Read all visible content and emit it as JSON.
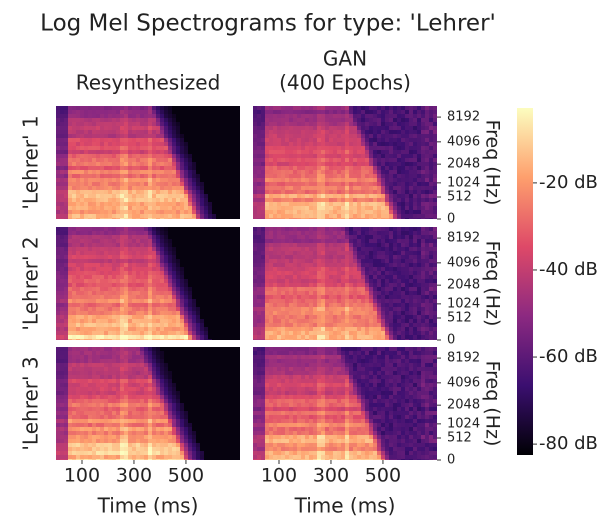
{
  "chart_data": {
    "type": "spectrogram",
    "title": "Log Mel Spectrograms for type: 'Lehrer'",
    "column_titles": [
      [
        "Resynthesized"
      ],
      [
        "GAN",
        "(400 Epochs)"
      ]
    ],
    "row_labels": [
      "'Lehrer' 1",
      "'Lehrer' 2",
      "'Lehrer' 3"
    ],
    "xlabel": "Time (ms)",
    "ylabel": "Freq (Hz)",
    "xlim": [
      0,
      708
    ],
    "xticks": [
      100,
      300,
      500
    ],
    "yscale": "mel",
    "ylim": [
      0,
      11025
    ],
    "yticks": [
      0,
      512,
      1024,
      2048,
      4096,
      8192
    ],
    "clim": [
      -82.5,
      -2.8
    ],
    "cticks": [
      {
        "value": -20,
        "label": "-20 dB"
      },
      {
        "value": -40,
        "label": "-40 dB"
      },
      {
        "value": -60,
        "label": "-60 dB"
      },
      {
        "value": -80,
        "label": "-80 dB"
      }
    ],
    "colormap": [
      "#000004",
      "#3b0f70",
      "#8c2981",
      "#de4968",
      "#fe9f6d",
      "#fcfdbf"
    ]
  }
}
